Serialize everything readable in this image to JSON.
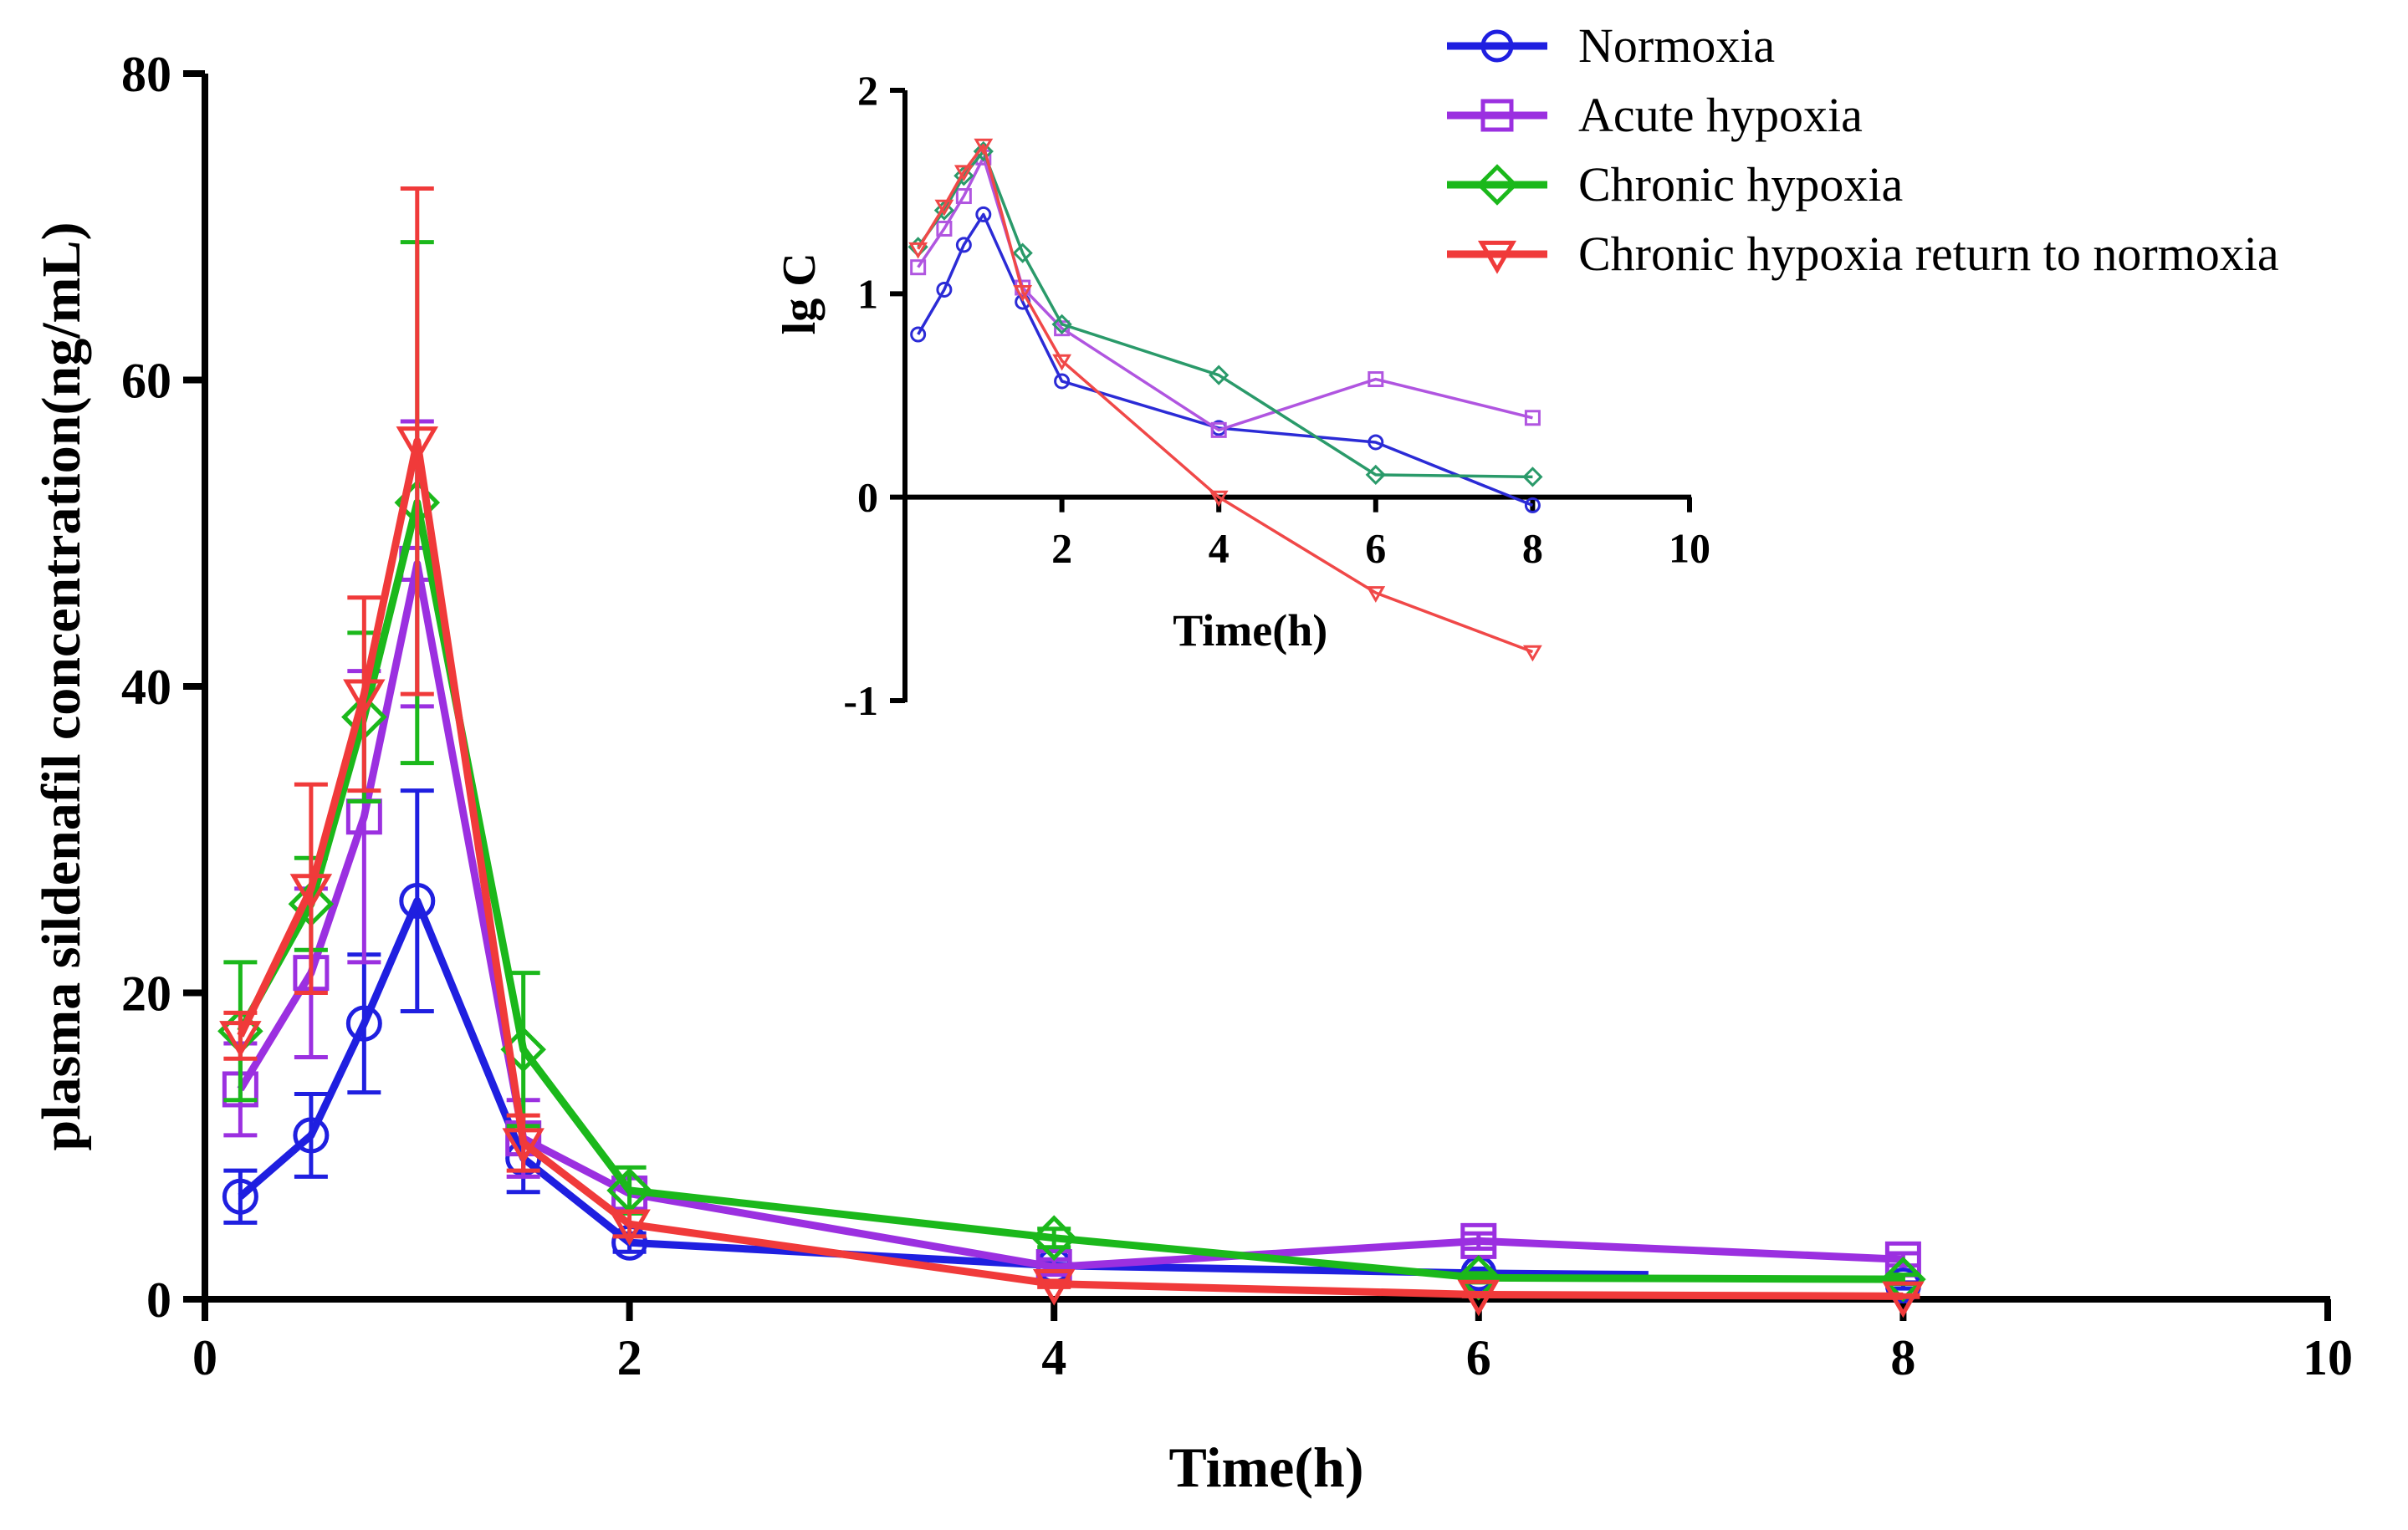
{
  "chart_data": [
    {
      "id": "main",
      "type": "line",
      "title": "",
      "xlabel": "Time(h)",
      "ylabel": "plasma sildenafil concentration(ng/mL)",
      "xlim": [
        0,
        10
      ],
      "ylim": [
        0,
        80
      ],
      "xticks": [
        0,
        2,
        4,
        6,
        8,
        10
      ],
      "yticks": [
        0,
        20,
        40,
        60,
        80
      ],
      "x": [
        0.167,
        0.5,
        0.75,
        1,
        1.5,
        2,
        4,
        6,
        8
      ],
      "series": [
        {
          "name": "Normoxia",
          "color": "#1f1fe0",
          "marker": "circle",
          "values": [
            6.7,
            10.7,
            18.0,
            26.0,
            9.2,
            3.7,
            2.2,
            1.7,
            0.9
          ],
          "errors": [
            1.7,
            2.7,
            4.5,
            7.2,
            2.2,
            0.6,
            0.4,
            0.3,
            0.2
          ],
          "line_end_x": 6.8,
          "line_end_y": 1.6
        },
        {
          "name": "Acute hypoxia",
          "color": "#9b30e0",
          "marker": "square",
          "values": [
            13.7,
            21.3,
            31.5,
            48.0,
            10.5,
            6.9,
            2.1,
            3.8,
            2.6
          ],
          "errors": [
            3.0,
            5.5,
            9.5,
            9.3,
            2.5,
            1.0,
            0.5,
            0.5,
            0.4
          ]
        },
        {
          "name": "Chronic hypoxia",
          "color": "#1bb81b",
          "marker": "diamond",
          "values": [
            17.5,
            25.8,
            38.0,
            52.0,
            16.3,
            7.1,
            4.0,
            1.4,
            1.3
          ],
          "errors": [
            4.5,
            3.0,
            5.5,
            17.0,
            5.0,
            1.5,
            0.6,
            0.3,
            0.3
          ]
        },
        {
          "name": "Chronic hypoxia return to normoxia",
          "color": "#f03a3a",
          "marker": "triangle-down",
          "values": [
            17.2,
            26.8,
            39.5,
            56.0,
            10.2,
            4.9,
            1.0,
            0.3,
            0.2
          ],
          "errors": [
            1.5,
            6.8,
            6.3,
            16.5,
            1.8,
            0.8,
            0.2,
            0.1,
            0.05
          ]
        }
      ]
    },
    {
      "id": "inset",
      "type": "line",
      "title": "",
      "xlabel": "Time(h)",
      "ylabel": "lg C",
      "xlim": [
        0,
        10
      ],
      "ylim": [
        -1,
        2
      ],
      "xticks": [
        2,
        4,
        6,
        8,
        10
      ],
      "yticks": [
        -1,
        0,
        1,
        2
      ],
      "series": [
        {
          "name": "Normoxia",
          "color": "#2b2bd6",
          "marker": "circle",
          "x": [
            0.167,
            0.5,
            0.75,
            1,
            1.5,
            2,
            4,
            6,
            8
          ],
          "values": [
            0.8,
            1.02,
            1.24,
            1.39,
            0.96,
            0.57,
            0.34,
            0.27,
            -0.04
          ]
        },
        {
          "name": "Acute hypoxia",
          "color": "#b055e0",
          "marker": "square",
          "x": [
            0.167,
            0.5,
            0.75,
            1,
            1.5,
            2,
            4,
            6,
            8
          ],
          "values": [
            1.13,
            1.32,
            1.48,
            1.67,
            1.03,
            0.83,
            0.33,
            0.58,
            0.39
          ]
        },
        {
          "name": "Chronic hypoxia",
          "color": "#2a9a6a",
          "marker": "diamond",
          "x": [
            0.167,
            0.5,
            0.75,
            1,
            1.5,
            2,
            4,
            6,
            8
          ],
          "values": [
            1.23,
            1.41,
            1.58,
            1.7,
            1.2,
            0.85,
            0.6,
            0.11,
            0.1
          ]
        },
        {
          "name": "Chronic hypoxia return to normoxia",
          "color": "#f04848",
          "marker": "triangle-down",
          "x": [
            0.167,
            0.5,
            0.75,
            1,
            1.5,
            2,
            4,
            6,
            8
          ],
          "values": [
            1.22,
            1.43,
            1.6,
            1.73,
            1.01,
            0.67,
            0.0,
            -0.47,
            -0.76
          ]
        }
      ]
    }
  ],
  "legend": {
    "position": "top-right",
    "items": [
      {
        "label": "Normoxia",
        "color": "#1f1fe0",
        "marker": "circle"
      },
      {
        "label": "Acute hypoxia",
        "color": "#9b30e0",
        "marker": "square"
      },
      {
        "label": "Chronic hypoxia",
        "color": "#1bb81b",
        "marker": "diamond"
      },
      {
        "label": "Chronic hypoxia return to normoxia",
        "color": "#f03a3a",
        "marker": "triangle-down"
      }
    ]
  }
}
